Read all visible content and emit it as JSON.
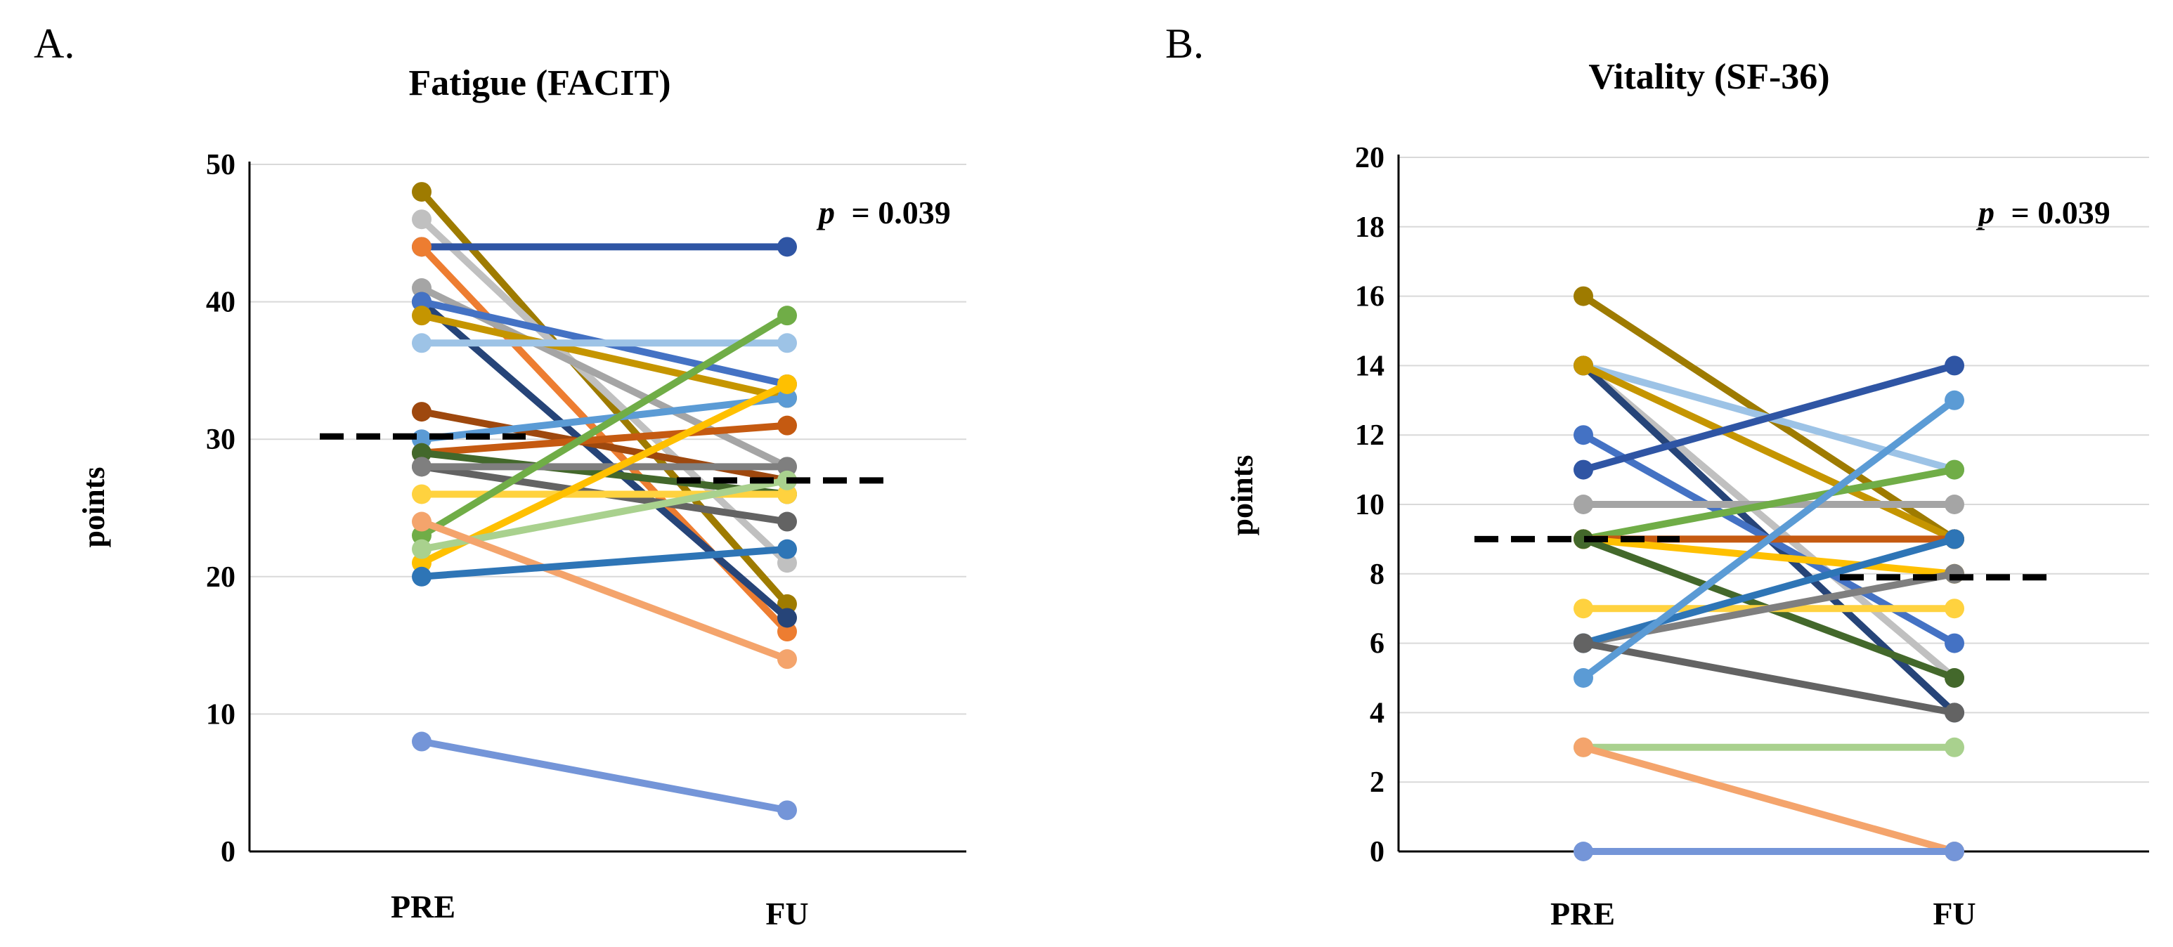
{
  "chart_data": [
    {
      "type": "line",
      "panel_label": "A.",
      "title": "Fatigue (FACIT)",
      "ylabel": "points",
      "xlabel": "",
      "categories": [
        "PRE",
        "FU"
      ],
      "ylim": [
        0,
        50
      ],
      "yticks": [
        0,
        10,
        20,
        30,
        40,
        50
      ],
      "grid": true,
      "annotation": {
        "p_symbol": "p",
        "p_value": "= 0.039"
      },
      "mean_line": {
        "style": "dashed",
        "color": "#000000",
        "values": [
          30.2,
          27.0
        ]
      },
      "series": [
        {
          "color": "#9e7b00",
          "values": [
            48,
            18
          ]
        },
        {
          "color": "#c0c0c0",
          "values": [
            46,
            21
          ]
        },
        {
          "color": "#2f55a4",
          "values": [
            44,
            44
          ]
        },
        {
          "color": "#ed7d31",
          "values": [
            44,
            16
          ]
        },
        {
          "color": "#a5a5a5",
          "values": [
            41,
            28
          ]
        },
        {
          "color": "#264478",
          "values": [
            40,
            17
          ]
        },
        {
          "color": "#4472c4",
          "values": [
            40,
            34
          ]
        },
        {
          "color": "#c59500",
          "values": [
            39,
            33
          ]
        },
        {
          "color": "#9dc3e6",
          "values": [
            37,
            37
          ]
        },
        {
          "color": "#9e480e",
          "values": [
            32,
            27
          ]
        },
        {
          "color": "#5b9bd5",
          "values": [
            30,
            33
          ]
        },
        {
          "color": "#c55a11",
          "values": [
            29,
            31
          ]
        },
        {
          "color": "#43682b",
          "values": [
            29,
            26
          ]
        },
        {
          "color": "#636363",
          "values": [
            28,
            24
          ]
        },
        {
          "color": "#7f7f7f",
          "values": [
            28,
            28
          ]
        },
        {
          "color": "#ffd23f",
          "values": [
            26,
            26
          ]
        },
        {
          "color": "#ffc000",
          "values": [
            21,
            34
          ]
        },
        {
          "color": "#70ad47",
          "values": [
            23,
            39
          ]
        },
        {
          "color": "#a9d18e",
          "values": [
            22,
            27
          ]
        },
        {
          "color": "#f4a46c",
          "values": [
            24,
            14
          ]
        },
        {
          "color": "#2e75b6",
          "values": [
            20,
            22
          ]
        },
        {
          "color": "#7495d8",
          "values": [
            8,
            3
          ]
        }
      ]
    },
    {
      "type": "line",
      "panel_label": "B.",
      "title": "Vitality (SF-36)",
      "ylabel": "points",
      "xlabel": "",
      "categories": [
        "PRE",
        "FU"
      ],
      "ylim": [
        0,
        20
      ],
      "yticks": [
        0,
        2,
        4,
        6,
        8,
        10,
        12,
        14,
        16,
        18,
        20
      ],
      "grid": true,
      "annotation": {
        "p_symbol": "p",
        "p_value": "= 0.039"
      },
      "mean_line": {
        "style": "dashed",
        "color": "#000000",
        "values": [
          9.0,
          7.9
        ]
      },
      "series": [
        {
          "color": "#9e7b00",
          "values": [
            16,
            9
          ]
        },
        {
          "color": "#9dc3e6",
          "values": [
            14,
            11
          ]
        },
        {
          "color": "#c0c0c0",
          "values": [
            14,
            5
          ]
        },
        {
          "color": "#264478",
          "values": [
            14,
            4
          ]
        },
        {
          "color": "#c59500",
          "values": [
            14,
            9
          ]
        },
        {
          "color": "#4472c4",
          "values": [
            12,
            6
          ]
        },
        {
          "color": "#2f55a4",
          "values": [
            11,
            14
          ]
        },
        {
          "color": "#a5a5a5",
          "values": [
            10,
            10
          ]
        },
        {
          "color": "#70ad47",
          "values": [
            9,
            11
          ]
        },
        {
          "color": "#c55a11",
          "values": [
            9,
            9
          ]
        },
        {
          "color": "#ffc000",
          "values": [
            9,
            8
          ]
        },
        {
          "color": "#43682b",
          "values": [
            9,
            5
          ]
        },
        {
          "color": "#ffd23f",
          "values": [
            7,
            7
          ]
        },
        {
          "color": "#7f7f7f",
          "values": [
            6,
            8
          ]
        },
        {
          "color": "#2e75b6",
          "values": [
            6,
            9
          ]
        },
        {
          "color": "#636363",
          "values": [
            6,
            4
          ]
        },
        {
          "color": "#5b9bd5",
          "values": [
            5,
            13
          ]
        },
        {
          "color": "#a9d18e",
          "values": [
            3,
            3
          ]
        },
        {
          "color": "#f4a46c",
          "values": [
            3,
            0
          ]
        },
        {
          "color": "#7495d8",
          "values": [
            0,
            0
          ]
        }
      ]
    }
  ]
}
